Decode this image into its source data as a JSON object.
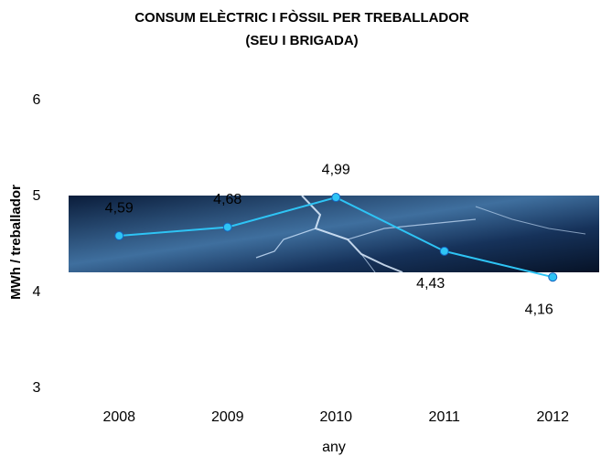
{
  "chart_data": {
    "type": "line",
    "title": "CONSUM ELÈCTRIC I FÒSSIL PER TREBALLADOR",
    "subtitle": "(SEU I BRIGADA)",
    "y_label": "MWh / treballador",
    "x_label": "any",
    "categories": [
      "2008",
      "2009",
      "2010",
      "2011",
      "2012"
    ],
    "series": [
      {
        "name": "MWh / treballador",
        "color": "#2ec4f5",
        "values": [
          4.59,
          4.68,
          4.99,
          4.43,
          4.16
        ],
        "value_labels": [
          "4,59",
          "4,68",
          "4,99",
          "4,43",
          "4,16"
        ]
      }
    ],
    "ylim": [
      3,
      6
    ],
    "yticks": [
      3,
      4,
      5,
      6
    ],
    "grid": false
  }
}
